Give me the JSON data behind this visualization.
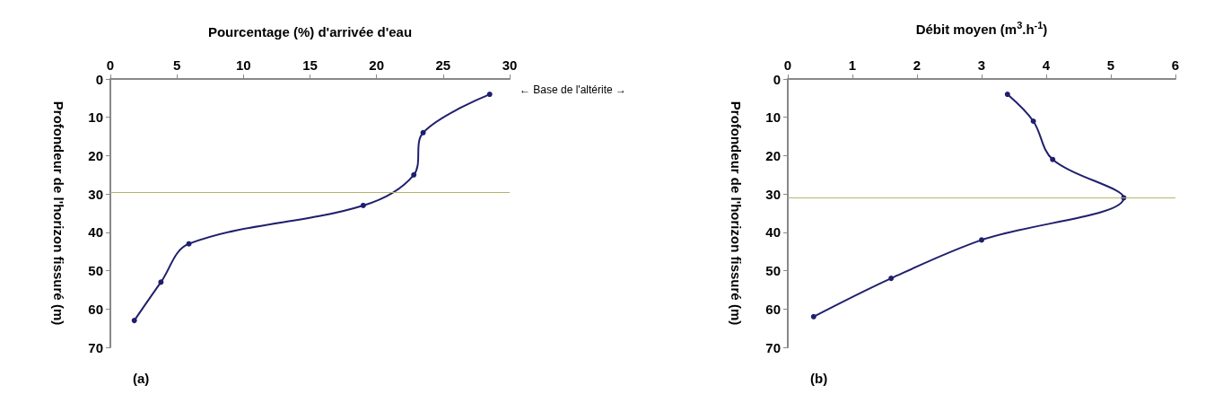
{
  "chart_data": [
    {
      "type": "line",
      "xlabel": "Pourcentage (%) d'arrivée d'eau",
      "ylabel": "Profondeur de l'horizon fissuré (m)",
      "xlim": [
        0,
        30
      ],
      "xticks": [
        0,
        5,
        10,
        15,
        20,
        25,
        30
      ],
      "ylim": [
        70,
        0
      ],
      "yticks": [
        0,
        10,
        20,
        30,
        40,
        50,
        60,
        70
      ],
      "grid": false,
      "marker": "circle",
      "line_style": "solid",
      "series": [
        {
          "color": "#1f1f6e",
          "x": [
            28.5,
            23.5,
            22.8,
            19,
            5.9,
            3.8,
            1.8
          ],
          "values": [
            4,
            14,
            25,
            33,
            43,
            53,
            63
          ]
        }
      ],
      "ref_lines": [
        {
          "axis": "y",
          "value": 29.5,
          "color": "#b5b56a"
        }
      ],
      "annotations": [
        "← Base de l'altérite →",
        "(a)"
      ]
    },
    {
      "type": "line",
      "xlabel": "Débit moyen (m$^{3}$.h$^{-1}$)",
      "ylabel": "Profondeur de l'horizon fissuré (m)",
      "xlim": [
        0,
        6
      ],
      "xticks": [
        0,
        1,
        2,
        3,
        4,
        5,
        6
      ],
      "ylim": [
        70,
        0
      ],
      "yticks": [
        0,
        10,
        20,
        30,
        40,
        50,
        60,
        70
      ],
      "grid": false,
      "marker": "circle",
      "line_style": "solid",
      "series": [
        {
          "color": "#1f1f6e",
          "x": [
            3.4,
            3.8,
            4.1,
            5.2,
            3.0,
            1.6,
            0.4
          ],
          "values": [
            4,
            11,
            21,
            31,
            42,
            52,
            62
          ]
        }
      ],
      "ref_lines": [
        {
          "axis": "y",
          "value": 31,
          "color": "#b5b56a"
        }
      ],
      "annotations": [
        "(b)"
      ]
    }
  ]
}
